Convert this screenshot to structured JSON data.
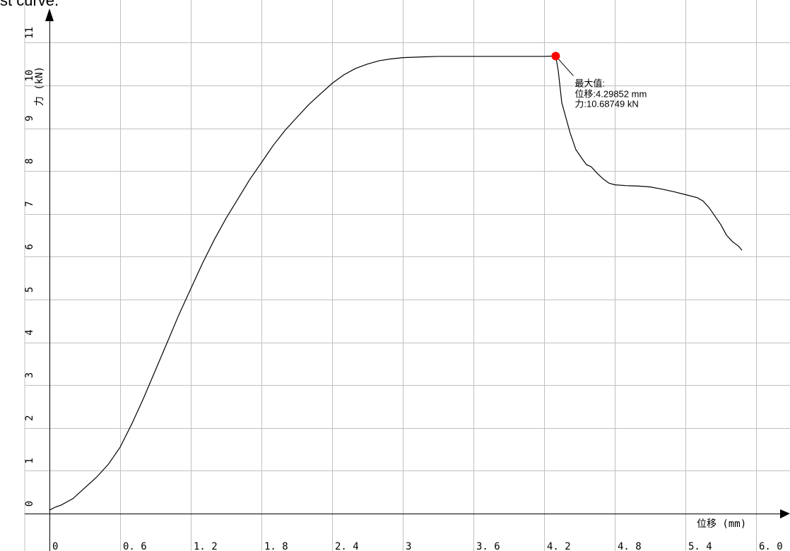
{
  "caption": "st curve.",
  "colors": {
    "grid": "#c0c0c0",
    "curve": "#000000",
    "marker": "#ff0000"
  },
  "chart_data": {
    "type": "line",
    "title": "",
    "xlabel": "位移 (mm)",
    "ylabel": "力 (kN)",
    "xlim": [
      0,
      6.3
    ],
    "ylim": [
      0,
      11
    ],
    "x_ticks": [
      "0",
      "0.6",
      "1.2",
      "1.8",
      "2.4",
      "3",
      "3.6",
      "4.2",
      "4.8",
      "5.4",
      "6.0"
    ],
    "y_ticks": [
      "0",
      "1",
      "2",
      "3",
      "4",
      "5",
      "6",
      "7",
      "8",
      "9",
      "10",
      "11"
    ],
    "grid": true,
    "series": [
      {
        "x": [
          0,
          0.05,
          0.1,
          0.2,
          0.3,
          0.4,
          0.5,
          0.6,
          0.7,
          0.8,
          0.9,
          1.0,
          1.1,
          1.2,
          1.3,
          1.4,
          1.5,
          1.6,
          1.7,
          1.8,
          1.9,
          2.0,
          2.1,
          2.2,
          2.3,
          2.4,
          2.5,
          2.6,
          2.7,
          2.8,
          2.9,
          3.0,
          3.1,
          3.2,
          3.3,
          3.4,
          3.5,
          3.6,
          3.7,
          3.8,
          3.9,
          4.0,
          4.1,
          4.2,
          4.29852,
          4.32,
          4.35,
          4.38,
          4.42,
          4.47,
          4.52,
          4.56,
          4.6,
          4.65,
          4.7,
          4.75,
          4.8,
          4.9,
          5.0,
          5.1,
          5.2,
          5.3,
          5.4,
          5.5,
          5.55,
          5.6,
          5.65,
          5.7,
          5.75,
          5.8,
          5.85,
          5.88
        ],
        "y": [
          0.08,
          0.15,
          0.2,
          0.35,
          0.6,
          0.85,
          1.15,
          1.55,
          2.1,
          2.7,
          3.35,
          4.0,
          4.65,
          5.25,
          5.85,
          6.4,
          6.9,
          7.35,
          7.8,
          8.2,
          8.6,
          8.95,
          9.25,
          9.55,
          9.8,
          10.05,
          10.25,
          10.4,
          10.5,
          10.58,
          10.62,
          10.65,
          10.66,
          10.67,
          10.68,
          10.68,
          10.68,
          10.68,
          10.68,
          10.68,
          10.68,
          10.68,
          10.68,
          10.68,
          10.68749,
          10.35,
          9.6,
          9.3,
          8.9,
          8.5,
          8.3,
          8.15,
          8.1,
          7.95,
          7.82,
          7.72,
          7.68,
          7.66,
          7.65,
          7.63,
          7.58,
          7.52,
          7.45,
          7.38,
          7.3,
          7.15,
          6.95,
          6.75,
          6.5,
          6.35,
          6.25,
          6.15
        ]
      }
    ],
    "annotations": [
      {
        "title": "最大值:",
        "line1": "位移:4.29852 mm",
        "line2": "力:10.68749 kN",
        "x": 4.29852,
        "y": 10.68749
      }
    ]
  }
}
